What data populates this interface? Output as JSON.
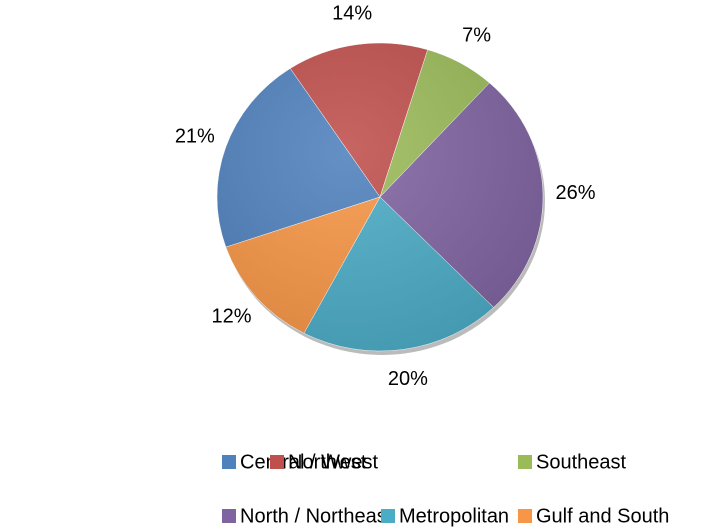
{
  "chart_data": {
    "type": "pie",
    "categories": [
      "Central / West",
      "Northwest",
      "Southeast",
      "North / Northeast",
      "Metropolitan",
      "Gulf and South"
    ],
    "values": [
      21,
      14,
      7,
      26,
      20,
      12
    ],
    "value_labels": [
      "21%",
      "14%",
      "7%",
      "26%",
      "20%",
      "12%"
    ],
    "colors": [
      "#4f81bd",
      "#c0504d",
      "#9bbb59",
      "#8064a2",
      "#4bacc6",
      "#f79646"
    ],
    "legend": "bottom"
  }
}
